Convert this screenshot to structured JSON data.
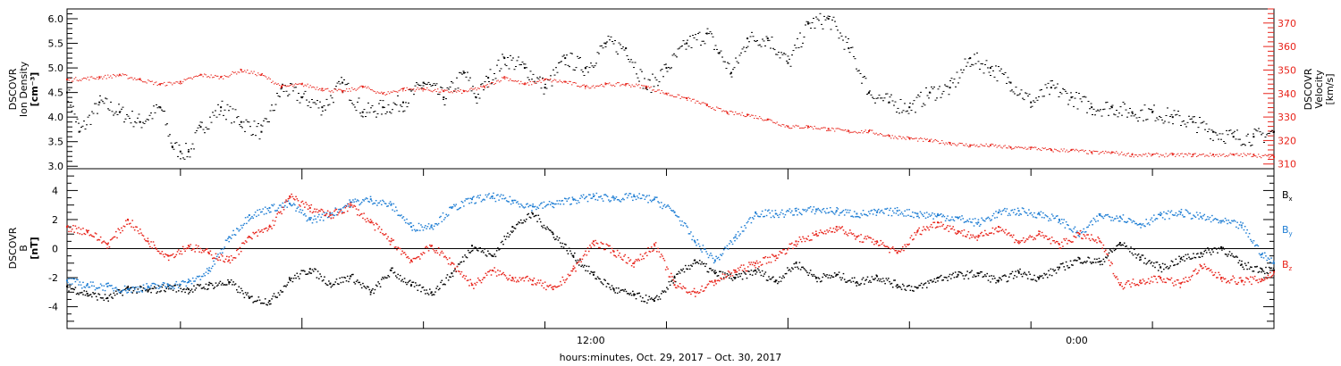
{
  "chart_data": [
    {
      "type": "scatter",
      "panel": "top",
      "ylabel_left": [
        "DSCOVR",
        "Ion Density",
        "[cm⁻³]"
      ],
      "ylabel_right": [
        "DSCOVR",
        "Velocity",
        "[km/s]"
      ],
      "left_axis": {
        "range": [
          2.95,
          6.2
        ],
        "ticks": [
          3.0,
          3.5,
          4.0,
          4.5,
          5.0,
          5.5,
          6.0
        ],
        "tick_labels": [
          "3.0",
          "3.5",
          "4.0",
          "4.5",
          "5.0",
          "5.5",
          "6.0"
        ],
        "color": "#000000"
      },
      "right_axis": {
        "range": [
          308,
          376
        ],
        "ticks": [
          310,
          320,
          330,
          340,
          350,
          360,
          370
        ],
        "tick_labels": [
          "310",
          "320",
          "330",
          "340",
          "350",
          "360",
          "370"
        ],
        "color": "#e8231a"
      },
      "x_range_hours": [
        -5.8,
        24.0
      ],
      "series": [
        {
          "axis": "left",
          "color": "#000000",
          "x": [
            -5.8,
            -5.5,
            -5.0,
            -4.5,
            -4.0,
            -3.5,
            -3.2,
            -3.0,
            -2.8,
            -2.5,
            -2.0,
            -1.5,
            -1.0,
            -0.5,
            0.0,
            0.5,
            1.0,
            1.5,
            2.0,
            2.5,
            3.0,
            3.5,
            4.0,
            4.3,
            4.6,
            5.0,
            5.5,
            6.0,
            6.5,
            7.0,
            7.5,
            8.0,
            8.5,
            9.0,
            9.5,
            10.0,
            10.3,
            10.6,
            11.0,
            11.5,
            12.0,
            12.5,
            13.0,
            13.5,
            14.0,
            14.5,
            15.0,
            15.5,
            16.0,
            16.5,
            17.0,
            17.5,
            18.0,
            18.5,
            19.0,
            19.5,
            20.0,
            20.5,
            21.0,
            21.5,
            22.0,
            22.5,
            23.0,
            23.5,
            24.0
          ],
          "y": [
            4.5,
            3.7,
            4.3,
            4.1,
            3.9,
            4.2,
            3.4,
            3.3,
            3.3,
            3.8,
            4.2,
            3.9,
            3.7,
            4.6,
            4.4,
            4.2,
            4.7,
            4.1,
            4.2,
            4.3,
            4.7,
            4.4,
            4.9,
            4.4,
            4.8,
            5.2,
            5.0,
            4.6,
            5.2,
            5.0,
            5.5,
            5.4,
            4.6,
            5.0,
            5.5,
            5.7,
            5.3,
            4.9,
            5.6,
            5.6,
            5.1,
            5.9,
            6.0,
            5.4,
            4.5,
            4.3,
            4.2,
            4.5,
            4.6,
            5.2,
            5.0,
            4.7,
            4.3,
            4.6,
            4.4,
            4.2,
            4.2,
            4.1,
            4.1,
            4.0,
            3.9,
            3.7,
            3.6,
            3.6,
            3.7
          ]
        },
        {
          "axis": "right",
          "color": "#e8231a",
          "x": [
            -5.8,
            -5.0,
            -4.5,
            -4.0,
            -3.5,
            -3.0,
            -2.5,
            -2.0,
            -1.5,
            -1.0,
            -0.5,
            0.0,
            0.5,
            1.0,
            1.5,
            2.0,
            2.5,
            3.0,
            3.5,
            4.0,
            4.5,
            5.0,
            5.5,
            6.0,
            6.5,
            7.0,
            7.5,
            8.0,
            8.5,
            9.0,
            9.5,
            10.0,
            10.5,
            11.0,
            11.5,
            12.0,
            12.5,
            13.0,
            13.5,
            14.0,
            14.5,
            15.0,
            15.5,
            16.0,
            16.5,
            17.0,
            17.5,
            18.0,
            18.5,
            19.0,
            19.5,
            20.0,
            20.5,
            21.0,
            21.5,
            22.0,
            22.5,
            23.0,
            23.5,
            24.0
          ],
          "y": [
            346,
            347,
            348,
            346,
            344,
            345,
            348,
            347,
            350,
            348,
            343,
            344,
            342,
            341,
            343,
            340,
            342,
            342,
            341,
            341,
            343,
            347,
            344,
            346,
            345,
            343,
            344,
            344,
            343,
            340,
            338,
            335,
            332,
            331,
            329,
            326,
            326,
            325,
            324,
            324,
            322,
            321,
            320,
            319,
            318,
            318,
            317,
            317,
            316,
            316,
            315,
            315,
            314,
            314,
            314,
            314,
            314,
            314,
            314,
            313
          ]
        }
      ]
    },
    {
      "type": "scatter",
      "panel": "bottom",
      "ylabel_left": [
        "DSCOVR",
        "B",
        "[nT]"
      ],
      "y_axis": {
        "range": [
          -5.5,
          5.5
        ],
        "ticks": [
          -4,
          -2,
          0,
          2,
          4
        ],
        "tick_labels": [
          "-4",
          "-2",
          "0",
          "2",
          "4"
        ]
      },
      "zero_line": true,
      "x_range_hours": [
        -5.8,
        24.0
      ],
      "x_tick_labels": [
        "12:00",
        "0:00"
      ],
      "xlabel": "hours:minutes, Oct. 29, 2017 – Oct. 30, 2017",
      "legend": [
        {
          "label": "B",
          "subscript": "x",
          "color": "#000000"
        },
        {
          "label": "B",
          "subscript": "y",
          "color": "#1f7ed4"
        },
        {
          "label": "B",
          "subscript": "z",
          "color": "#e8231a"
        }
      ],
      "series": [
        {
          "name": "Bx",
          "color": "#000000",
          "x": [
            -5.8,
            -5.3,
            -4.8,
            -4.3,
            -3.8,
            -3.3,
            -2.8,
            -2.3,
            -1.8,
            -1.3,
            -0.8,
            -0.3,
            0.2,
            0.7,
            1.2,
            1.7,
            2.2,
            2.7,
            3.2,
            3.7,
            4.2,
            4.7,
            5.2,
            5.7,
            6.2,
            6.7,
            7.2,
            7.7,
            8.2,
            8.7,
            9.2,
            9.7,
            10.2,
            10.7,
            11.2,
            11.7,
            12.2,
            12.7,
            13.2,
            13.7,
            14.2,
            14.7,
            15.2,
            15.7,
            16.2,
            16.7,
            17.2,
            17.7,
            18.2,
            18.7,
            19.2,
            19.7,
            20.2,
            20.7,
            21.2,
            21.7,
            22.2,
            22.7,
            23.2,
            23.7,
            24.0
          ],
          "y": [
            -2.6,
            -3.1,
            -3.4,
            -2.7,
            -2.9,
            -2.6,
            -2.8,
            -2.5,
            -2.3,
            -3.4,
            -3.6,
            -2.1,
            -1.4,
            -2.4,
            -1.9,
            -3.0,
            -1.5,
            -2.5,
            -3.0,
            -1.7,
            0.2,
            -0.5,
            1.5,
            2.4,
            1.0,
            -0.5,
            -1.8,
            -2.8,
            -3.2,
            -3.6,
            -2.0,
            -0.8,
            -1.7,
            -2.0,
            -1.5,
            -2.2,
            -1.0,
            -2.0,
            -1.8,
            -2.3,
            -1.9,
            -2.5,
            -2.7,
            -2.0,
            -1.8,
            -1.7,
            -2.2,
            -1.6,
            -2.0,
            -1.3,
            -0.7,
            -0.9,
            0.4,
            -0.6,
            -1.3,
            -0.7,
            -0.3,
            0.1,
            -1.1,
            -1.4,
            -1.5
          ]
        },
        {
          "name": "By",
          "color": "#1f7ed4",
          "x": [
            -5.8,
            -5.3,
            -4.8,
            -4.3,
            -3.8,
            -3.3,
            -2.8,
            -2.3,
            -1.8,
            -1.3,
            -0.8,
            -0.3,
            0.2,
            0.7,
            1.2,
            1.7,
            2.2,
            2.7,
            3.2,
            3.7,
            4.2,
            4.7,
            5.2,
            5.7,
            6.2,
            6.7,
            7.2,
            7.7,
            8.2,
            8.7,
            9.2,
            9.7,
            10.2,
            10.7,
            11.2,
            11.7,
            12.2,
            12.7,
            13.2,
            13.7,
            14.2,
            14.7,
            15.2,
            15.7,
            16.2,
            16.7,
            17.2,
            17.7,
            18.2,
            18.7,
            19.2,
            19.7,
            20.2,
            20.7,
            21.2,
            21.7,
            22.2,
            22.7,
            23.2,
            23.7,
            24.0
          ],
          "y": [
            -2.2,
            -2.5,
            -2.6,
            -2.8,
            -2.6,
            -2.5,
            -2.3,
            -1.5,
            0.8,
            2.3,
            2.8,
            3.1,
            2.0,
            2.4,
            3.2,
            3.4,
            3.0,
            1.5,
            1.6,
            2.8,
            3.4,
            3.6,
            3.3,
            2.9,
            3.1,
            3.4,
            3.6,
            3.5,
            3.6,
            3.4,
            2.5,
            0.5,
            -0.8,
            0.8,
            2.5,
            2.4,
            2.6,
            2.7,
            2.6,
            2.4,
            2.5,
            2.6,
            2.4,
            2.3,
            2.1,
            1.8,
            2.5,
            2.6,
            2.4,
            2.0,
            1.0,
            2.3,
            2.2,
            1.7,
            2.3,
            2.5,
            2.2,
            1.9,
            1.6,
            -0.4,
            -1.0
          ]
        },
        {
          "name": "Bz",
          "color": "#e8231a",
          "x": [
            -5.8,
            -5.3,
            -4.8,
            -4.3,
            -3.8,
            -3.3,
            -2.8,
            -2.3,
            -1.8,
            -1.3,
            -0.8,
            -0.3,
            0.2,
            0.7,
            1.2,
            1.7,
            2.2,
            2.7,
            3.2,
            3.7,
            4.2,
            4.7,
            5.2,
            5.7,
            6.2,
            6.7,
            7.2,
            7.7,
            8.2,
            8.7,
            9.2,
            9.7,
            10.2,
            10.7,
            11.2,
            11.7,
            12.2,
            12.7,
            13.2,
            13.7,
            14.2,
            14.7,
            15.2,
            15.7,
            16.2,
            16.7,
            17.2,
            17.7,
            18.2,
            18.7,
            19.2,
            19.7,
            20.2,
            20.7,
            21.2,
            21.7,
            22.2,
            22.7,
            23.2,
            23.7,
            24.0
          ],
          "y": [
            1.5,
            1.2,
            0.3,
            2.0,
            0.5,
            -0.5,
            0.2,
            -0.3,
            -0.8,
            0.8,
            1.5,
            3.6,
            2.8,
            2.3,
            3.0,
            1.8,
            0.5,
            -0.8,
            0.2,
            -1.0,
            -2.5,
            -1.5,
            -2.0,
            -2.2,
            -2.8,
            -1.4,
            0.5,
            -0.2,
            -1.0,
            0.3,
            -2.5,
            -3.0,
            -2.2,
            -1.5,
            -1.0,
            -0.5,
            0.5,
            1.0,
            1.5,
            0.8,
            0.5,
            -0.3,
            1.2,
            1.8,
            1.2,
            0.8,
            1.5,
            0.5,
            1.0,
            0.3,
            1.0,
            0.5,
            -2.5,
            -2.2,
            -2.0,
            -2.4,
            -1.2,
            -2.0,
            -2.2,
            -2.1,
            -1.6
          ]
        }
      ]
    }
  ]
}
